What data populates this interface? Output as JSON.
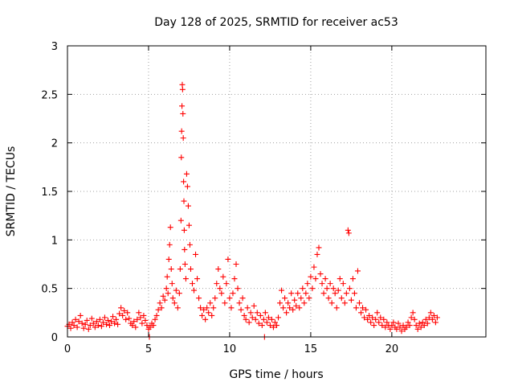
{
  "chart_data": {
    "type": "scatter",
    "title": "Day 128 of 2025, SRMTID for receiver ac53",
    "xlabel": "GPS time / hours",
    "ylabel": "SRMTID / TECUs",
    "xlim": [
      0,
      25.8
    ],
    "ylim": [
      0,
      3
    ],
    "xticks": [
      0,
      5,
      10,
      15,
      20
    ],
    "xtick_labels": [
      "0",
      "5",
      "10",
      "15",
      "20"
    ],
    "yticks": [
      0,
      0.5,
      1,
      1.5,
      2,
      2.5,
      3
    ],
    "ytick_labels": [
      "0",
      "0.5",
      "1",
      "1.5",
      "2",
      "2.5",
      "3"
    ],
    "grid": true,
    "marker": "+",
    "series_color": "#ff0000",
    "series": [
      {
        "name": "SRMTID",
        "points": [
          [
            0.0,
            0.11
          ],
          [
            0.1,
            0.13
          ],
          [
            0.2,
            0.09
          ],
          [
            0.3,
            0.15
          ],
          [
            0.4,
            0.12
          ],
          [
            0.5,
            0.18
          ],
          [
            0.6,
            0.1
          ],
          [
            0.7,
            0.16
          ],
          [
            0.8,
            0.22
          ],
          [
            0.9,
            0.14
          ],
          [
            1.0,
            0.09
          ],
          [
            1.1,
            0.13
          ],
          [
            1.2,
            0.17
          ],
          [
            1.3,
            0.08
          ],
          [
            1.4,
            0.12
          ],
          [
            1.5,
            0.19
          ],
          [
            1.6,
            0.14
          ],
          [
            1.7,
            0.1
          ],
          [
            1.8,
            0.16
          ],
          [
            1.9,
            0.12
          ],
          [
            2.0,
            0.18
          ],
          [
            2.1,
            0.11
          ],
          [
            2.2,
            0.15
          ],
          [
            2.3,
            0.2
          ],
          [
            2.4,
            0.13
          ],
          [
            2.5,
            0.17
          ],
          [
            2.6,
            0.12
          ],
          [
            2.7,
            0.16
          ],
          [
            2.8,
            0.21
          ],
          [
            2.9,
            0.14
          ],
          [
            3.0,
            0.18
          ],
          [
            3.1,
            0.13
          ],
          [
            3.2,
            0.24
          ],
          [
            3.3,
            0.3
          ],
          [
            3.4,
            0.22
          ],
          [
            3.5,
            0.27
          ],
          [
            3.6,
            0.18
          ],
          [
            3.7,
            0.25
          ],
          [
            3.8,
            0.19
          ],
          [
            3.9,
            0.14
          ],
          [
            4.0,
            0.12
          ],
          [
            4.1,
            0.16
          ],
          [
            4.2,
            0.1
          ],
          [
            4.3,
            0.18
          ],
          [
            4.4,
            0.25
          ],
          [
            4.5,
            0.2
          ],
          [
            4.6,
            0.14
          ],
          [
            4.7,
            0.22
          ],
          [
            4.8,
            0.17
          ],
          [
            4.9,
            0.12
          ],
          [
            5.0,
            0.08
          ],
          [
            5.05,
            0.0
          ],
          [
            5.1,
            0.1
          ],
          [
            5.2,
            0.14
          ],
          [
            5.3,
            0.12
          ],
          [
            5.4,
            0.18
          ],
          [
            5.5,
            0.22
          ],
          [
            5.6,
            0.28
          ],
          [
            5.7,
            0.35
          ],
          [
            5.8,
            0.3
          ],
          [
            5.9,
            0.42
          ],
          [
            6.0,
            0.38
          ],
          [
            6.1,
            0.5
          ],
          [
            6.15,
            0.62
          ],
          [
            6.2,
            0.45
          ],
          [
            6.25,
            0.8
          ],
          [
            6.3,
            0.95
          ],
          [
            6.35,
            1.13
          ],
          [
            6.4,
            0.7
          ],
          [
            6.45,
            0.55
          ],
          [
            6.5,
            0.4
          ],
          [
            6.6,
            0.35
          ],
          [
            6.7,
            0.48
          ],
          [
            6.8,
            0.3
          ],
          [
            6.9,
            0.45
          ],
          [
            6.95,
            0.7
          ],
          [
            7.0,
            1.2
          ],
          [
            7.02,
            1.85
          ],
          [
            7.04,
            2.12
          ],
          [
            7.06,
            2.38
          ],
          [
            7.08,
            2.6
          ],
          [
            7.1,
            2.55
          ],
          [
            7.12,
            2.3
          ],
          [
            7.14,
            2.05
          ],
          [
            7.16,
            1.6
          ],
          [
            7.18,
            1.4
          ],
          [
            7.2,
            1.1
          ],
          [
            7.22,
            0.9
          ],
          [
            7.25,
            0.75
          ],
          [
            7.3,
            0.6
          ],
          [
            7.35,
            1.68
          ],
          [
            7.4,
            1.55
          ],
          [
            7.45,
            1.35
          ],
          [
            7.5,
            1.15
          ],
          [
            7.55,
            0.95
          ],
          [
            7.6,
            0.7
          ],
          [
            7.7,
            0.55
          ],
          [
            7.8,
            0.48
          ],
          [
            7.9,
            0.85
          ],
          [
            8.0,
            0.6
          ],
          [
            8.1,
            0.4
          ],
          [
            8.2,
            0.3
          ],
          [
            8.3,
            0.22
          ],
          [
            8.4,
            0.28
          ],
          [
            8.5,
            0.18
          ],
          [
            8.6,
            0.3
          ],
          [
            8.7,
            0.25
          ],
          [
            8.8,
            0.35
          ],
          [
            8.9,
            0.22
          ],
          [
            9.0,
            0.3
          ],
          [
            9.1,
            0.4
          ],
          [
            9.2,
            0.55
          ],
          [
            9.3,
            0.7
          ],
          [
            9.4,
            0.5
          ],
          [
            9.5,
            0.45
          ],
          [
            9.6,
            0.62
          ],
          [
            9.7,
            0.35
          ],
          [
            9.8,
            0.55
          ],
          [
            9.9,
            0.8
          ],
          [
            10.0,
            0.4
          ],
          [
            10.1,
            0.3
          ],
          [
            10.2,
            0.45
          ],
          [
            10.3,
            0.6
          ],
          [
            10.4,
            0.75
          ],
          [
            10.5,
            0.5
          ],
          [
            10.6,
            0.35
          ],
          [
            10.7,
            0.28
          ],
          [
            10.8,
            0.4
          ],
          [
            10.9,
            0.22
          ],
          [
            11.0,
            0.18
          ],
          [
            11.1,
            0.3
          ],
          [
            11.2,
            0.15
          ],
          [
            11.3,
            0.25
          ],
          [
            11.4,
            0.2
          ],
          [
            11.5,
            0.32
          ],
          [
            11.6,
            0.18
          ],
          [
            11.7,
            0.25
          ],
          [
            11.8,
            0.14
          ],
          [
            11.9,
            0.22
          ],
          [
            12.0,
            0.12
          ],
          [
            12.1,
            0.18
          ],
          [
            12.15,
            0.0
          ],
          [
            12.2,
            0.25
          ],
          [
            12.3,
            0.15
          ],
          [
            12.4,
            0.2
          ],
          [
            12.5,
            0.12
          ],
          [
            12.6,
            0.18
          ],
          [
            12.7,
            0.1
          ],
          [
            12.8,
            0.15
          ],
          [
            12.9,
            0.12
          ],
          [
            13.0,
            0.2
          ],
          [
            13.1,
            0.35
          ],
          [
            13.2,
            0.48
          ],
          [
            13.3,
            0.3
          ],
          [
            13.4,
            0.4
          ],
          [
            13.5,
            0.25
          ],
          [
            13.6,
            0.35
          ],
          [
            13.7,
            0.3
          ],
          [
            13.8,
            0.45
          ],
          [
            13.9,
            0.28
          ],
          [
            14.0,
            0.38
          ],
          [
            14.1,
            0.32
          ],
          [
            14.2,
            0.45
          ],
          [
            14.3,
            0.3
          ],
          [
            14.4,
            0.4
          ],
          [
            14.5,
            0.5
          ],
          [
            14.6,
            0.35
          ],
          [
            14.7,
            0.45
          ],
          [
            14.8,
            0.55
          ],
          [
            14.9,
            0.4
          ],
          [
            15.0,
            0.62
          ],
          [
            15.1,
            0.5
          ],
          [
            15.2,
            0.72
          ],
          [
            15.3,
            0.6
          ],
          [
            15.4,
            0.85
          ],
          [
            15.5,
            0.92
          ],
          [
            15.6,
            0.65
          ],
          [
            15.7,
            0.55
          ],
          [
            15.8,
            0.45
          ],
          [
            15.9,
            0.6
          ],
          [
            16.0,
            0.5
          ],
          [
            16.1,
            0.4
          ],
          [
            16.2,
            0.55
          ],
          [
            16.3,
            0.35
          ],
          [
            16.4,
            0.5
          ],
          [
            16.5,
            0.45
          ],
          [
            16.6,
            0.3
          ],
          [
            16.7,
            0.48
          ],
          [
            16.8,
            0.6
          ],
          [
            16.9,
            0.4
          ],
          [
            17.0,
            0.55
          ],
          [
            17.1,
            0.35
          ],
          [
            17.2,
            0.45
          ],
          [
            17.3,
            1.1
          ],
          [
            17.35,
            1.07
          ],
          [
            17.4,
            0.5
          ],
          [
            17.5,
            0.38
          ],
          [
            17.6,
            0.6
          ],
          [
            17.7,
            0.45
          ],
          [
            17.8,
            0.3
          ],
          [
            17.9,
            0.68
          ],
          [
            18.0,
            0.35
          ],
          [
            18.1,
            0.25
          ],
          [
            18.2,
            0.3
          ],
          [
            18.3,
            0.2
          ],
          [
            18.4,
            0.28
          ],
          [
            18.5,
            0.18
          ],
          [
            18.6,
            0.22
          ],
          [
            18.7,
            0.15
          ],
          [
            18.8,
            0.2
          ],
          [
            18.9,
            0.12
          ],
          [
            19.0,
            0.18
          ],
          [
            19.1,
            0.25
          ],
          [
            19.2,
            0.15
          ],
          [
            19.3,
            0.2
          ],
          [
            19.4,
            0.12
          ],
          [
            19.5,
            0.18
          ],
          [
            19.6,
            0.1
          ],
          [
            19.7,
            0.15
          ],
          [
            19.8,
            0.12
          ],
          [
            19.9,
            0.08
          ],
          [
            20.0,
            0.12
          ],
          [
            20.1,
            0.15
          ],
          [
            20.2,
            0.1
          ],
          [
            20.3,
            0.08
          ],
          [
            20.4,
            0.14
          ],
          [
            20.5,
            0.1
          ],
          [
            20.6,
            0.06
          ],
          [
            20.7,
            0.12
          ],
          [
            20.8,
            0.08
          ],
          [
            20.9,
            0.1
          ],
          [
            21.0,
            0.15
          ],
          [
            21.1,
            0.12
          ],
          [
            21.2,
            0.2
          ],
          [
            21.3,
            0.25
          ],
          [
            21.4,
            0.18
          ],
          [
            21.5,
            0.12
          ],
          [
            21.6,
            0.08
          ],
          [
            21.7,
            0.14
          ],
          [
            21.8,
            0.1
          ],
          [
            21.9,
            0.15
          ],
          [
            22.0,
            0.12
          ],
          [
            22.1,
            0.18
          ],
          [
            22.2,
            0.14
          ],
          [
            22.3,
            0.2
          ],
          [
            22.4,
            0.25
          ],
          [
            22.5,
            0.18
          ],
          [
            22.6,
            0.22
          ],
          [
            22.7,
            0.15
          ],
          [
            22.8,
            0.2
          ]
        ]
      }
    ]
  }
}
